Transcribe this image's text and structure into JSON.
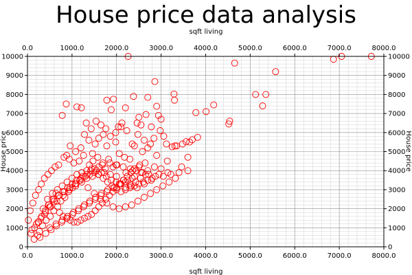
{
  "chart_data": {
    "type": "scatter",
    "title": "House price data analysis",
    "xlabel": "sqft living",
    "ylabel": "House price",
    "xlim": [
      0,
      8000
    ],
    "ylim": [
      0,
      10000
    ],
    "xticks": [
      0,
      1000,
      2000,
      3000,
      4000,
      5000,
      6000,
      7000,
      8000
    ],
    "xtick_labels": [
      "0.0",
      "1000.0",
      "2000.0",
      "3000.0",
      "4000.0",
      "5000.0",
      "6000.0",
      "7000.0",
      "8000.0"
    ],
    "yticks": [
      0,
      1000,
      2000,
      3000,
      4000,
      5000,
      6000,
      7000,
      8000,
      9000,
      10000
    ],
    "ytick_labels": [
      "0",
      "1000",
      "2000",
      "3000",
      "4000",
      "5000",
      "6000",
      "7000",
      "8000",
      "9000",
      "10000"
    ],
    "grid": true,
    "marker": "open-circle",
    "color": "#ff0000",
    "series": [
      {
        "x": [
          2260,
          4650,
          5570,
          6870,
          7050,
          7720,
          2860,
          5120,
          5350,
          5280,
          3290,
          3300,
          4010,
          4180,
          3780,
          4540,
          4520,
          3820,
          3700,
          3640,
          3560,
          3480,
          3350,
          3250,
          2900,
          2940,
          2660,
          2700,
          3000,
          2200,
          2380,
          2460,
          2500,
          1780,
          1930,
          1210,
          1110,
          780,
          870,
          1880,
          2120,
          2550,
          2780,
          3060,
          2230,
          2040,
          2480,
          2620,
          2980,
          3120,
          3310,
          2840,
          2350,
          1650,
          1540,
          1430,
          1320,
          1980,
          2100,
          2400,
          2580,
          2700,
          2760,
          2900,
          3140,
          2180,
          1860,
          1700,
          1760,
          1600,
          1980,
          2060,
          2300,
          2520,
          2640,
          1520,
          1380,
          1280,
          1200,
          1080,
          960,
          880,
          1780,
          1580,
          1460,
          1820,
          2010,
          1690,
          1470,
          1260,
          2210,
          2360,
          2500,
          1920,
          1750,
          1390,
          1160,
          1040,
          940,
          820,
          700,
          620,
          540,
          460,
          380,
          310,
          250,
          180,
          120,
          60,
          20,
          230,
          270,
          340,
          420,
          510,
          590,
          680,
          750,
          840,
          920,
          1010,
          1090,
          1170,
          1250,
          1340,
          1420,
          1510,
          1600,
          1680,
          1850,
          1990,
          2150,
          2310,
          2440,
          2580,
          2720,
          2870,
          3050,
          3220,
          3400,
          3600,
          500,
          640,
          780,
          900,
          1030,
          1150,
          1280,
          1400,
          1530,
          1660,
          1800,
          1950,
          2100,
          2250,
          2400,
          2550,
          2700,
          2850,
          3000,
          3150,
          150,
          280,
          410,
          530,
          650,
          770,
          890,
          1010,
          1140,
          1260,
          1390,
          1520,
          1650,
          1780,
          1920,
          2060,
          2200,
          2350,
          350,
          470,
          590,
          710,
          830,
          950,
          1070,
          1200,
          1330,
          1460,
          1590,
          1720,
          1860,
          2000,
          2150,
          2300,
          2460,
          2620,
          2780,
          2950,
          100,
          200,
          300,
          400,
          500,
          600,
          700,
          800,
          900,
          1000,
          1100,
          1200,
          1300,
          1400,
          1500,
          1600,
          1700,
          1800,
          1900,
          2000,
          2100,
          2200,
          2300,
          2400,
          2500,
          2600,
          2700,
          2800,
          450,
          560,
          670,
          780,
          890,
          1000,
          1110,
          1220,
          1330,
          1440,
          1550,
          1660,
          1770,
          1880,
          1990,
          2100,
          2210,
          2320,
          2430,
          2540,
          2650,
          250,
          380,
          520,
          660,
          800,
          940,
          1080,
          1220,
          1360,
          1500,
          1640,
          1780,
          1920,
          2060,
          2200,
          2340,
          2480,
          2620,
          2760,
          2900,
          3040,
          3180,
          3320,
          3460,
          3600,
          80,
          160,
          240,
          320,
          400,
          480,
          560,
          640,
          720,
          800,
          880,
          960,
          1040,
          1120,
          1200,
          1280,
          1360,
          1440,
          1520,
          1600,
          1680,
          1760,
          1840,
          1920,
          2000,
          2080,
          2160,
          2240,
          2320,
          2400
        ],
        "y": [
          10000,
          9650,
          9200,
          9850,
          10000,
          10000,
          8680,
          8000,
          8000,
          7400,
          8020,
          7700,
          7100,
          7450,
          7050,
          6600,
          6450,
          5750,
          5620,
          5500,
          5520,
          5400,
          5300,
          5250,
          7380,
          6900,
          6950,
          7850,
          6700,
          7300,
          7900,
          6500,
          6800,
          7700,
          7750,
          7300,
          7350,
          6900,
          7500,
          7200,
          6500,
          6400,
          6300,
          5800,
          6100,
          6300,
          5900,
          5600,
          6100,
          5400,
          5300,
          5700,
          5400,
          6400,
          6600,
          6200,
          6500,
          6000,
          6300,
          5300,
          5000,
          5200,
          5400,
          4800,
          4500,
          4700,
          5800,
          5900,
          6200,
          5700,
          5500,
          4900,
          4600,
          4300,
          4400,
          5400,
          5600,
          5900,
          5200,
          5000,
          5300,
          4800,
          5300,
          4700,
          4900,
          4600,
          4300,
          4400,
          4500,
          4800,
          3900,
          4000,
          4200,
          4200,
          4100,
          4300,
          4500,
          4400,
          4600,
          4700,
          4300,
          4200,
          4000,
          3800,
          3600,
          3300,
          3000,
          2700,
          2300,
          1900,
          1400,
          600,
          800,
          1100,
          1400,
          1600,
          1900,
          2100,
          2400,
          2600,
          2900,
          3100,
          3300,
          3500,
          3700,
          3800,
          4000,
          4100,
          4200,
          4300,
          4400,
          4300,
          4200,
          4100,
          4000,
          3900,
          3800,
          3700,
          3700,
          3800,
          3900,
          4000,
          1000,
          1200,
          1400,
          1600,
          1800,
          2000,
          2200,
          2400,
          2600,
          2800,
          3000,
          3100,
          3300,
          3500,
          3700,
          3900,
          4000,
          4200,
          4100,
          3900,
          400,
          500,
          700,
          900,
          1100,
          1300,
          1500,
          1700,
          1900,
          2100,
          2300,
          2500,
          2700,
          2900,
          3100,
          3300,
          3400,
          3600,
          2000,
          2200,
          2500,
          2700,
          2900,
          3100,
          3300,
          3500,
          3600,
          3700,
          3800,
          3900,
          3800,
          3700,
          3500,
          3300,
          3100,
          3300,
          3500,
          3800,
          900,
          1200,
          1500,
          1800,
          2100,
          2400,
          2700,
          2900,
          3100,
          3300,
          3500,
          3600,
          3700,
          3800,
          3900,
          3800,
          3600,
          3400,
          3200,
          3000,
          2900,
          3000,
          3100,
          3200,
          3300,
          3400,
          3500,
          3600,
          2500,
          2800,
          3000,
          3200,
          3400,
          3600,
          3800,
          3900,
          4000,
          4100,
          4000,
          3900,
          3700,
          3500,
          3400,
          3300,
          3100,
          3200,
          3400,
          3600,
          3800,
          1300,
          1700,
          2100,
          2400,
          2700,
          3000,
          3200,
          3400,
          3100,
          2800,
          2500,
          2300,
          2100,
          2000,
          2100,
          2200,
          2400,
          2600,
          2800,
          3000,
          3200,
          3400,
          3600,
          4200,
          4700,
          700,
          1000,
          1300,
          1600,
          1900,
          2200,
          2500,
          2800,
          1800,
          1600,
          1500,
          1400,
          1300,
          1300,
          1400,
          1500,
          1600,
          1700,
          1900,
          2100,
          2300,
          2500,
          2700,
          2900,
          3100,
          3300,
          3500,
          3700,
          3900,
          4100
        ]
      }
    ]
  }
}
